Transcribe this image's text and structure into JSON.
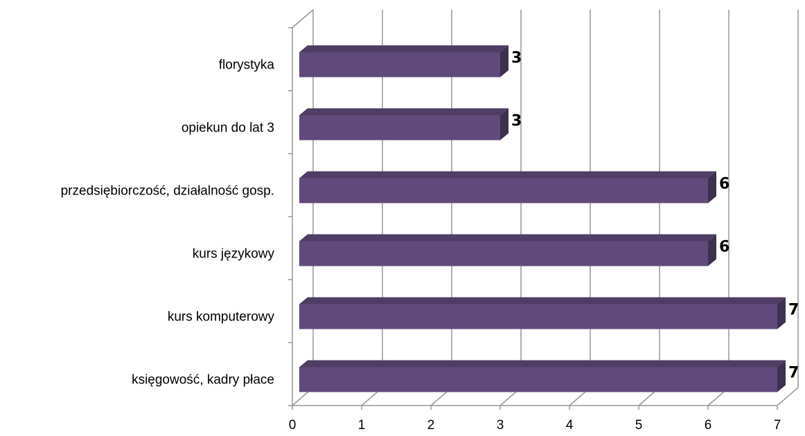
{
  "chart_data": {
    "type": "bar",
    "orientation": "horizontal",
    "style": "3d",
    "categories": [
      "florystyka",
      "opiekun do lat 3",
      "przedsiębiorczość, działalność gosp.",
      "kurs językowy",
      "kurs komputerowy",
      "księgowość, kadry płace"
    ],
    "values": [
      3,
      3,
      6,
      6,
      7,
      7
    ],
    "data_labels": [
      "3",
      "3",
      "6",
      "6",
      "7",
      "7"
    ],
    "x_ticks": [
      "0",
      "1",
      "2",
      "3",
      "4",
      "5",
      "6",
      "7"
    ],
    "xlim": [
      0,
      7
    ],
    "title": "",
    "xlabel": "",
    "ylabel": "",
    "grid": true,
    "legend": "none",
    "colors": {
      "bar_front": "#604A7B",
      "bar_top": "#4F3D66",
      "bar_side": "#3E3050",
      "gridline": "#969696"
    }
  }
}
